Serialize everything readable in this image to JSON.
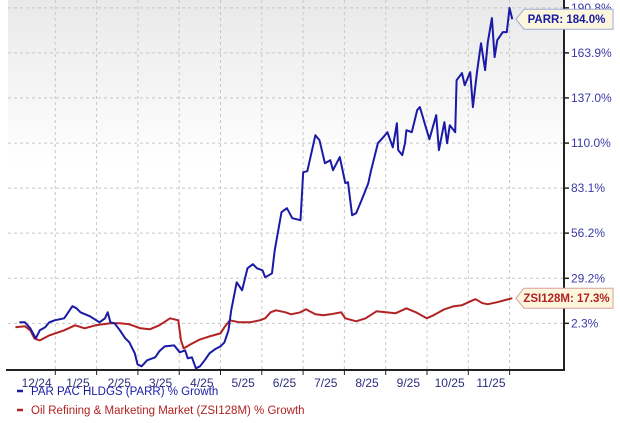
{
  "chart_data": {
    "type": "line",
    "title": "",
    "xlabel": "",
    "ylabel": "",
    "ylim": [
      -25,
      195.5
    ],
    "grid": true,
    "legend_position": "bottom-left",
    "y_ticks": [
      190.8,
      163.9,
      137.0,
      110.0,
      83.1,
      56.2,
      29.2,
      2.3
    ],
    "y_tick_labels": [
      "190.8%",
      "163.9%",
      "137.0%",
      "110.0%",
      "83.1%",
      "56.2%",
      "29.2%",
      "2.3%"
    ],
    "x_tick_labels": [
      "12/24",
      "1/25",
      "2/25",
      "3/25",
      "4/25",
      "5/25",
      "6/25",
      "7/25",
      "8/25",
      "9/25",
      "10/25",
      "11/25"
    ],
    "series": [
      {
        "name": "PAR PAC HLDGS (PARR) % Growth",
        "color": "#1a1aa6",
        "callout": "PARR: 184.0%",
        "points": [
          [
            "2024-12-05",
            2.9
          ],
          [
            "2024-12-09",
            2.9
          ],
          [
            "2024-12-13",
            -0.7
          ],
          [
            "2024-12-17",
            -6.7
          ],
          [
            "2024-12-20",
            -1.9
          ],
          [
            "2024-12-24",
            -0.1
          ],
          [
            "2024-12-27",
            2.9
          ],
          [
            "2024-12-31",
            4.1
          ],
          [
            "2025-01-07",
            5.3
          ],
          [
            "2025-01-13",
            12.5
          ],
          [
            "2025-01-16",
            11.3
          ],
          [
            "2025-01-19",
            8.9
          ],
          [
            "2025-01-26",
            6.5
          ],
          [
            "2025-02-02",
            2.9
          ],
          [
            "2025-02-06",
            5.3
          ],
          [
            "2025-02-08",
            8.9
          ],
          [
            "2025-02-10",
            2.9
          ],
          [
            "2025-02-13",
            2.3
          ],
          [
            "2025-02-17",
            -1.9
          ],
          [
            "2025-02-21",
            -6.7
          ],
          [
            "2025-02-24",
            -9.1
          ],
          [
            "2025-02-28",
            -15.6
          ],
          [
            "2025-03-02",
            -22.2
          ],
          [
            "2025-03-05",
            -23.4
          ],
          [
            "2025-03-09",
            -19.8
          ],
          [
            "2025-03-15",
            -18.0
          ],
          [
            "2025-03-18",
            -14.4
          ],
          [
            "2025-03-22",
            -11.5
          ],
          [
            "2025-03-29",
            -10.9
          ],
          [
            "2025-04-02",
            -15.0
          ],
          [
            "2025-04-06",
            -13.9
          ],
          [
            "2025-04-08",
            -18.6
          ],
          [
            "2025-04-11",
            -18.0
          ],
          [
            "2025-04-14",
            -24.6
          ],
          [
            "2025-04-17",
            -23.4
          ],
          [
            "2025-04-21",
            -19.2
          ],
          [
            "2025-04-24",
            -15.6
          ],
          [
            "2025-04-28",
            -13.2
          ],
          [
            "2025-05-02",
            -11.5
          ],
          [
            "2025-05-05",
            -9.1
          ],
          [
            "2025-05-08",
            -1.9
          ],
          [
            "2025-05-10",
            10.1
          ],
          [
            "2025-05-14",
            26.8
          ],
          [
            "2025-05-18",
            22.0
          ],
          [
            "2025-05-22",
            35.2
          ],
          [
            "2025-05-26",
            37.6
          ],
          [
            "2025-05-29",
            35.2
          ],
          [
            "2025-06-02",
            34.0
          ],
          [
            "2025-06-04",
            29.8
          ],
          [
            "2025-06-09",
            32.2
          ],
          [
            "2025-06-11",
            45.9
          ],
          [
            "2025-06-16",
            68.7
          ],
          [
            "2025-06-20",
            71.1
          ],
          [
            "2025-06-24",
            65.1
          ],
          [
            "2025-06-30",
            63.9
          ],
          [
            "2025-07-02",
            92.6
          ],
          [
            "2025-07-05",
            93.2
          ],
          [
            "2025-07-11",
            114.7
          ],
          [
            "2025-07-14",
            111.7
          ],
          [
            "2025-07-18",
            98.0
          ],
          [
            "2025-07-22",
            99.8
          ],
          [
            "2025-07-24",
            93.8
          ],
          [
            "2025-07-29",
            101.6
          ],
          [
            "2025-08-02",
            86.0
          ],
          [
            "2025-08-04",
            86.6
          ],
          [
            "2025-08-07",
            66.9
          ],
          [
            "2025-08-10",
            68.1
          ],
          [
            "2025-08-14",
            75.9
          ],
          [
            "2025-08-19",
            86.0
          ],
          [
            "2025-08-21",
            93.8
          ],
          [
            "2025-08-26",
            109.9
          ],
          [
            "2025-08-30",
            113.5
          ],
          [
            "2025-09-02",
            116.5
          ],
          [
            "2025-09-06",
            107.5
          ],
          [
            "2025-09-09",
            121.9
          ],
          [
            "2025-09-10",
            105.8
          ],
          [
            "2025-09-13",
            102.8
          ],
          [
            "2025-09-15",
            109.9
          ],
          [
            "2025-09-16",
            117.7
          ],
          [
            "2025-09-20",
            116.5
          ],
          [
            "2025-09-24",
            129.7
          ],
          [
            "2025-09-26",
            131.5
          ],
          [
            "2025-10-01",
            117.7
          ],
          [
            "2025-10-03",
            112.3
          ],
          [
            "2025-10-08",
            126.7
          ],
          [
            "2025-10-10",
            105.8
          ],
          [
            "2025-10-14",
            122.5
          ],
          [
            "2025-10-16",
            109.9
          ],
          [
            "2025-10-18",
            120.7
          ],
          [
            "2025-10-22",
            116.5
          ],
          [
            "2025-10-23",
            147.6
          ],
          [
            "2025-10-27",
            151.8
          ],
          [
            "2025-10-29",
            144.6
          ],
          [
            "2025-11-02",
            152.4
          ],
          [
            "2025-11-04",
            131.5
          ],
          [
            "2025-11-07",
            152.4
          ],
          [
            "2025-11-10",
            169.7
          ],
          [
            "2025-11-13",
            153.6
          ],
          [
            "2025-11-15",
            170.3
          ],
          [
            "2025-11-18",
            184.7
          ],
          [
            "2025-11-20",
            161.4
          ],
          [
            "2025-11-22",
            171.5
          ],
          [
            "2025-11-26",
            176.3
          ],
          [
            "2025-11-29",
            176.3
          ],
          [
            "2025-12-01",
            190.7
          ],
          [
            "2025-12-03",
            184.0
          ]
        ]
      },
      {
        "name": "Oil Refining & Marketing Market (ZSI128M) % Growth",
        "color": "#b22222",
        "callout": "ZSI128M: 17.3%",
        "points": [
          [
            "2024-12-02",
            -0.1
          ],
          [
            "2024-12-09",
            0.5
          ],
          [
            "2024-12-13",
            -1.9
          ],
          [
            "2024-12-16",
            -6.7
          ],
          [
            "2024-12-20",
            -7.9
          ],
          [
            "2024-12-27",
            -4.9
          ],
          [
            "2025-01-07",
            -1.9
          ],
          [
            "2025-01-15",
            1.1
          ],
          [
            "2025-01-22",
            -0.7
          ],
          [
            "2025-01-30",
            1.1
          ],
          [
            "2025-02-10",
            2.3
          ],
          [
            "2025-02-17",
            2.3
          ],
          [
            "2025-02-24",
            1.7
          ],
          [
            "2025-03-04",
            -0.7
          ],
          [
            "2025-03-11",
            -1.3
          ],
          [
            "2025-03-18",
            1.1
          ],
          [
            "2025-03-26",
            5.3
          ],
          [
            "2025-04-01",
            4.1
          ],
          [
            "2025-04-03",
            -7.9
          ],
          [
            "2025-04-05",
            -12.7
          ],
          [
            "2025-04-10",
            -10.3
          ],
          [
            "2025-04-17",
            -7.3
          ],
          [
            "2025-04-24",
            -5.5
          ],
          [
            "2025-05-02",
            -3.7
          ],
          [
            "2025-05-05",
            -0.1
          ],
          [
            "2025-05-09",
            4.1
          ],
          [
            "2025-05-16",
            2.9
          ],
          [
            "2025-05-24",
            2.9
          ],
          [
            "2025-05-31",
            4.1
          ],
          [
            "2025-06-04",
            5.3
          ],
          [
            "2025-06-08",
            8.9
          ],
          [
            "2025-06-12",
            10.1
          ],
          [
            "2025-06-19",
            8.9
          ],
          [
            "2025-06-23",
            7.7
          ],
          [
            "2025-06-30",
            8.9
          ],
          [
            "2025-07-04",
            10.7
          ],
          [
            "2025-07-11",
            7.7
          ],
          [
            "2025-07-17",
            7.1
          ],
          [
            "2025-07-22",
            7.7
          ],
          [
            "2025-07-30",
            8.9
          ],
          [
            "2025-08-02",
            5.3
          ],
          [
            "2025-08-10",
            3.5
          ],
          [
            "2025-08-17",
            5.3
          ],
          [
            "2025-08-25",
            9.5
          ],
          [
            "2025-09-01",
            8.9
          ],
          [
            "2025-09-08",
            8.3
          ],
          [
            "2025-09-16",
            11.3
          ],
          [
            "2025-09-23",
            8.9
          ],
          [
            "2025-10-01",
            5.3
          ],
          [
            "2025-10-06",
            7.1
          ],
          [
            "2025-10-14",
            10.7
          ],
          [
            "2025-10-21",
            12.5
          ],
          [
            "2025-10-27",
            13.1
          ],
          [
            "2025-11-04",
            16.1
          ],
          [
            "2025-11-06",
            16.7
          ],
          [
            "2025-11-11",
            14.3
          ],
          [
            "2025-11-15",
            13.7
          ],
          [
            "2025-11-22",
            14.9
          ],
          [
            "2025-11-29",
            16.5
          ],
          [
            "2025-12-03",
            17.3
          ]
        ]
      }
    ]
  }
}
